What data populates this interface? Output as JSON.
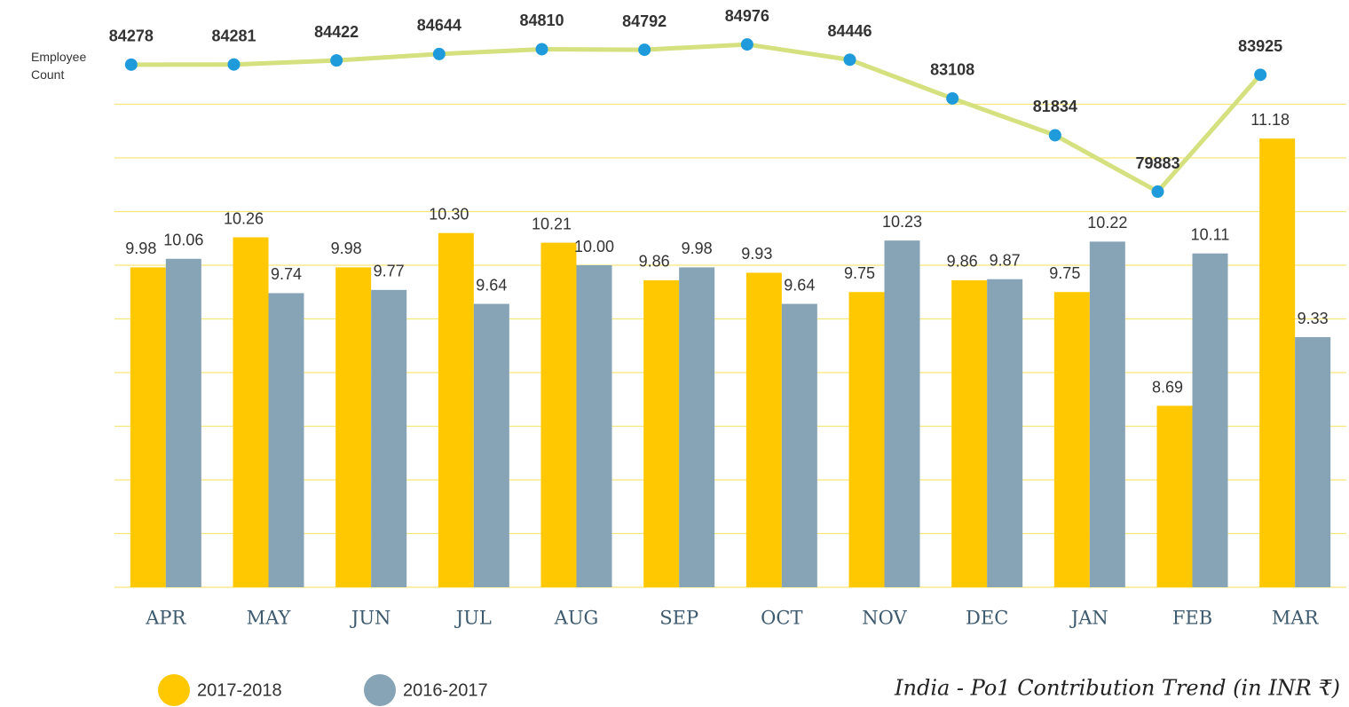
{
  "chart_data": {
    "type": "bar",
    "title": "India - Po1 Contribution Trend (in INR ₹)",
    "y2label": "Employee Count",
    "categories": [
      "APR",
      "MAY",
      "JUN",
      "JUL",
      "AUG",
      "SEP",
      "OCT",
      "NOV",
      "DEC",
      "JAN",
      "FEB",
      "MAR"
    ],
    "ylim": [
      7,
      11.5
    ],
    "yticks": [
      7,
      7.5,
      8,
      8.5,
      9,
      9.5,
      10,
      10.5,
      11,
      11.5
    ],
    "y2lim": [
      79500,
      85500
    ],
    "grid": true,
    "series": [
      {
        "name": "2017-2018",
        "type": "bar",
        "color": "#ffc800",
        "values": [
          9.98,
          10.26,
          9.98,
          10.3,
          10.21,
          9.86,
          9.93,
          9.75,
          9.86,
          9.75,
          8.69,
          11.18
        ],
        "value_labels": [
          "9.98",
          "10.26",
          "9.98",
          "10.30",
          "10.21",
          "9.86",
          "9.93",
          "9.75",
          "9.86",
          "9.75",
          "8.69",
          "11.18"
        ]
      },
      {
        "name": "2016-2017",
        "type": "bar",
        "color": "#87a3b6",
        "values": [
          10.06,
          9.74,
          9.77,
          9.64,
          10.0,
          9.98,
          9.64,
          10.23,
          9.87,
          10.22,
          10.11,
          9.33
        ],
        "value_labels": [
          "10.06",
          "9.74",
          "9.77",
          "9.64",
          "10.00",
          "9.98",
          "9.64",
          "10.23",
          "9.87",
          "10.22",
          "10.11",
          "9.33"
        ]
      },
      {
        "type": "line",
        "axis": "y2",
        "color": "#d5e07f",
        "marker_color": "#1f9bdc",
        "values": [
          84278,
          84281,
          84422,
          84644,
          84810,
          84792,
          84976,
          84446,
          83108,
          81834,
          79883,
          83925
        ]
      }
    ]
  }
}
